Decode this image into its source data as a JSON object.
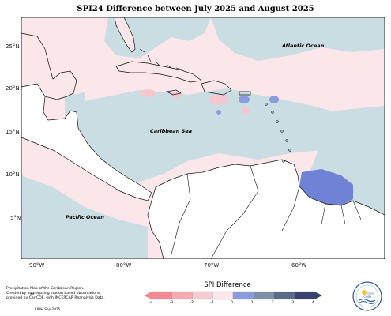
{
  "title": "SPI24 Difference between July 2025 and August 2025",
  "map": {
    "lat_labels": [
      "25°N",
      "20°N",
      "15°N",
      "10°N",
      "5°N"
    ],
    "lon_labels": [
      "90°W",
      "80°W",
      "70°W",
      "60°W"
    ],
    "places": {
      "atlantic": "Atlantic Ocean",
      "caribbean": "Caribbean Sea",
      "pacific": "Pacific Ocean"
    },
    "colors": {
      "ocean_light_pink": "#fbe6ea",
      "light_blue": "#c9dde3",
      "mid_blue": "#8b9cdd",
      "deep_blue": "#6f82d6",
      "pink": "#f4c6cf"
    }
  },
  "legend": {
    "title": "SPI Difference",
    "ticks": [
      "-4",
      "-3",
      "-2",
      "-1",
      "0",
      "1",
      "2",
      "3",
      "4"
    ],
    "colors": [
      "#f18a92",
      "#f4aab1",
      "#f6cbd1",
      "#fbe6ea",
      "#c9dde3",
      "#8b9cdd",
      "#7d90a6",
      "#586a86",
      "#39426e"
    ]
  },
  "footer": {
    "line1": "Precipitation Map of the Caribbean Region.",
    "line2": "Created by aggregating station based observations,",
    "line3": "provided by CariCOF, with INCERCAR Reanalysis Data.",
    "credit": "CIMH Sep-2025"
  },
  "logo": {
    "text": "CIMH"
  }
}
